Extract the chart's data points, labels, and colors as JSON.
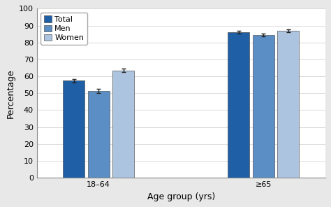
{
  "groups": [
    "18–64",
    "≥65"
  ],
  "series": [
    "Total",
    "Men",
    "Women"
  ],
  "values": [
    [
      57.5,
      51.2,
      63.5
    ],
    [
      86.0,
      84.5,
      86.8
    ]
  ],
  "errors": [
    [
      1.0,
      1.2,
      1.0
    ],
    [
      0.8,
      0.9,
      0.8
    ]
  ],
  "colors": [
    "#1f5fa6",
    "#5b8ec4",
    "#adc4e0"
  ],
  "bar_width": 0.18,
  "group_centers": [
    1.0,
    2.2
  ],
  "xlabel": "Age group (yrs)",
  "ylabel": "Percentage",
  "ylim": [
    0,
    100
  ],
  "yticks": [
    0,
    10,
    20,
    30,
    40,
    50,
    60,
    70,
    80,
    90,
    100
  ],
  "legend_labels": [
    "Total",
    "Men",
    "Women"
  ],
  "figure_facecolor": "#e8e8e8",
  "plot_bg": "#ffffff",
  "error_capsize": 2.5,
  "error_linewidth": 1.0,
  "error_color": "#222222",
  "xlabel_fontsize": 9,
  "ylabel_fontsize": 9,
  "tick_fontsize": 8,
  "legend_fontsize": 8
}
